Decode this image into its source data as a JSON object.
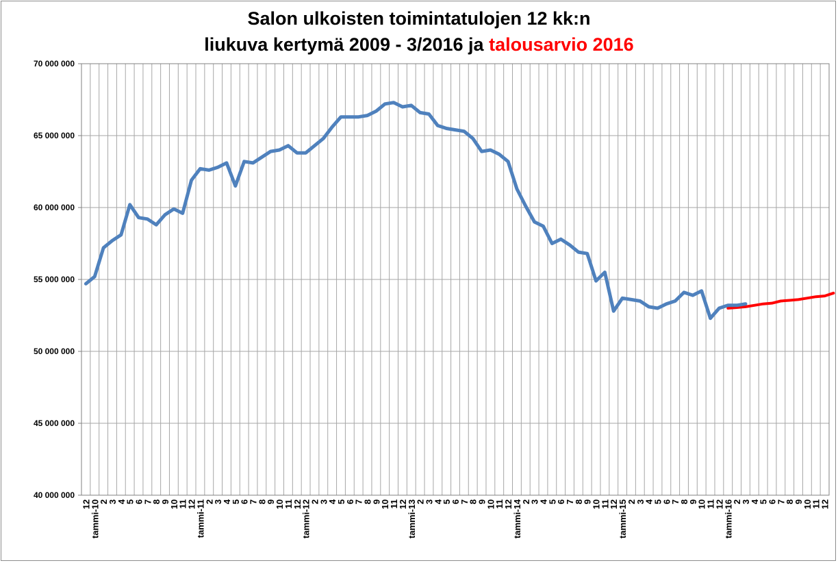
{
  "title_line1": "Salon ulkoisten toimintatulojen 12 kk:n",
  "title_line2_black": "liukuva kertymä 2009 - 3/2016 ja",
  "title_line2_red": "talousarvio 2016",
  "colors": {
    "actual": "#4f81bd",
    "budget": "#ff0000",
    "grid": "#a6a6a6",
    "axis": "#808080"
  },
  "chart_data": {
    "type": "line",
    "ylim": [
      40000000,
      70000000
    ],
    "yticks": [
      40000000,
      45000000,
      50000000,
      55000000,
      60000000,
      65000000,
      70000000
    ],
    "ytick_labels": [
      "40 000 000",
      "45 000 000",
      "50 000 000",
      "55 000 000",
      "60 000 000",
      "65 000 000",
      "70 000 000"
    ],
    "x_labels": [
      "12",
      "tammi-10",
      "2",
      "3",
      "4",
      "5",
      "6",
      "7",
      "8",
      "9",
      "10",
      "11",
      "12",
      "tammi-11",
      "2",
      "3",
      "4",
      "5",
      "6",
      "7",
      "8",
      "9",
      "10",
      "11",
      "12",
      "tammi-12",
      "2",
      "3",
      "4",
      "5",
      "6",
      "7",
      "8",
      "9",
      "10",
      "11",
      "12",
      "tammi-13",
      "2",
      "3",
      "4",
      "5",
      "6",
      "7",
      "8",
      "9",
      "10",
      "11",
      "12",
      "tammi-14",
      "2",
      "3",
      "4",
      "5",
      "6",
      "7",
      "8",
      "9",
      "10",
      "11",
      "12",
      "tammi-15",
      "2",
      "3",
      "4",
      "5",
      "6",
      "7",
      "8",
      "9",
      "10",
      "11",
      "12",
      "tammi-16",
      "2",
      "3",
      "4",
      "5",
      "6",
      "7",
      "8",
      "9",
      "10",
      "11",
      "12"
    ],
    "series": [
      {
        "values": [
          54700000,
          55200000,
          57200000,
          57700000,
          58100000,
          60200000,
          59300000,
          59200000,
          58800000,
          59500000,
          59900000,
          59600000,
          61900000,
          62700000,
          62600000,
          62800000,
          63100000,
          61500000,
          63200000,
          63100000,
          63500000,
          63900000,
          64000000,
          64300000,
          63800000,
          63800000,
          64300000,
          64800000,
          65600000,
          66300000,
          66300000,
          66300000,
          66400000,
          66700000,
          67200000,
          67300000,
          67000000,
          67100000,
          66600000,
          66500000,
          65700000,
          65500000,
          65400000,
          65300000,
          64800000,
          63900000,
          64000000,
          63700000,
          63200000,
          61300000,
          60100000,
          59000000,
          58700000,
          57500000,
          57800000,
          57400000,
          56900000,
          56800000,
          54900000,
          55500000,
          52800000,
          53700000,
          53600000,
          53500000,
          53100000,
          53000000,
          53300000,
          53500000,
          54100000,
          53900000,
          54200000,
          52300000,
          53000000,
          53200000,
          53200000,
          53300000
        ]
      },
      {
        "start_index": 73,
        "values": [
          53000000,
          53050000,
          53100000,
          53200000,
          53300000,
          53350000,
          53500000,
          53550000,
          53600000,
          53700000,
          53800000,
          53850000,
          54050000
        ]
      }
    ]
  }
}
